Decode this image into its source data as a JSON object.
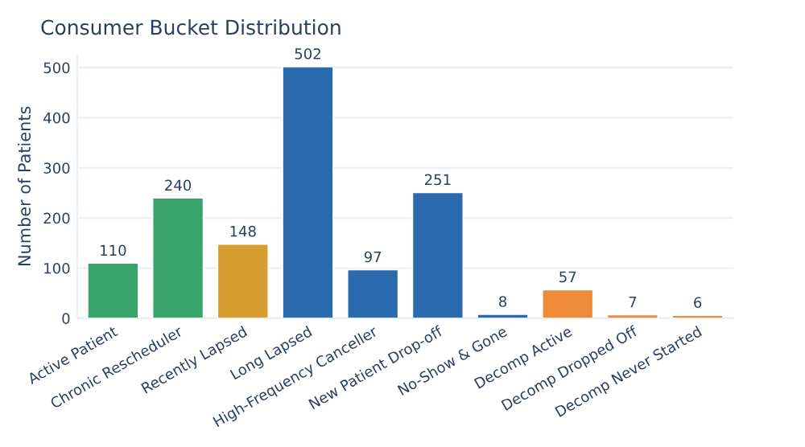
{
  "chart_data": {
    "type": "bar",
    "title": "Consumer Bucket Distribution",
    "ylabel": "Number of Patients",
    "categories": [
      "Active Patient",
      "Chronic Rescheduler",
      "Recently Lapsed",
      "Long Lapsed",
      "High-Frequency Canceller",
      "New Patient Drop-off",
      "No-Show & Gone",
      "Decomp Active",
      "Decomp Dropped Off",
      "Decomp Never Started"
    ],
    "values": [
      110,
      240,
      148,
      502,
      97,
      251,
      8,
      57,
      7,
      6
    ],
    "colors": [
      "#3aa36b",
      "#3aa36b",
      "#d69e30",
      "#2a6bb0",
      "#2a6bb0",
      "#2a6bb0",
      "#2a6bb0",
      "#ee8a38",
      "#ee8a38",
      "#ee8a38"
    ],
    "ylim": [
      0,
      526
    ],
    "yticks": [
      0,
      100,
      200,
      300,
      400,
      500
    ],
    "grid": "y",
    "data_labels": true
  }
}
